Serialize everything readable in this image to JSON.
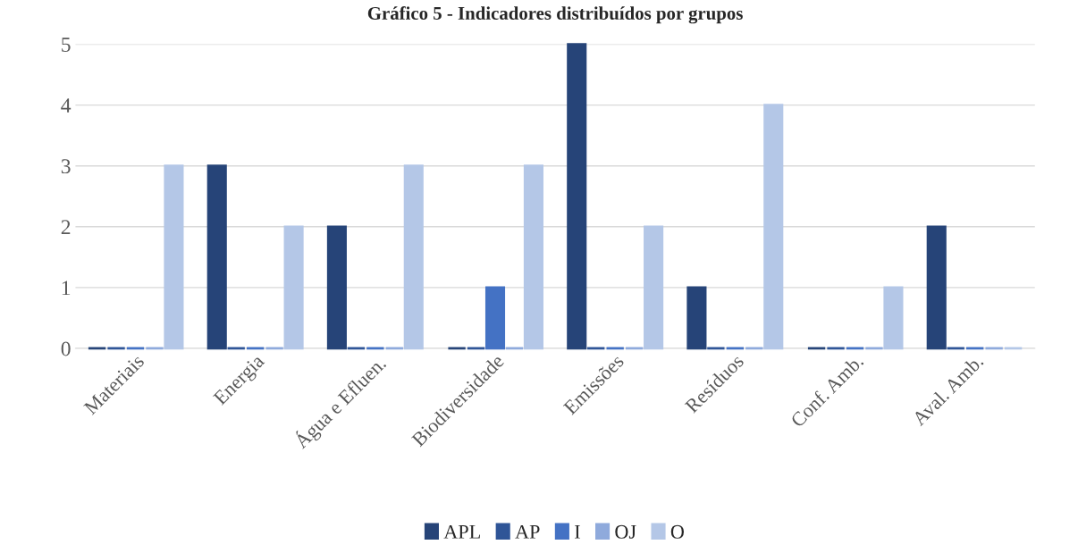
{
  "chart_data": {
    "type": "bar",
    "title": "Gráfico 5 - Indicadores distribuídos por grupos",
    "categories": [
      "Materiais",
      "Energia",
      "Água e Efluen.",
      "Biodiversidade",
      "Emissões",
      "Resíduos",
      "Conf. Amb.",
      "Aval. Amb."
    ],
    "series": [
      {
        "name": "APL",
        "color": "#264478",
        "values": [
          0,
          3,
          2,
          0,
          5,
          1,
          0,
          2
        ]
      },
      {
        "name": "AP",
        "color": "#2f5597",
        "values": [
          0,
          0,
          0,
          0,
          0,
          0,
          0,
          0
        ]
      },
      {
        "name": "I",
        "color": "#4472c4",
        "values": [
          0,
          0,
          0,
          1,
          0,
          0,
          0,
          0
        ]
      },
      {
        "name": "OJ",
        "color": "#8faadc",
        "values": [
          0,
          0,
          0,
          0,
          0,
          0,
          0,
          0
        ]
      },
      {
        "name": "O",
        "color": "#b4c7e7",
        "values": [
          3,
          2,
          3,
          3,
          2,
          4,
          1,
          0
        ]
      }
    ],
    "ylim": [
      0,
      5
    ],
    "yticks": [
      0,
      1,
      2,
      3,
      4,
      5
    ],
    "grid": "y",
    "legend": "bottom"
  }
}
